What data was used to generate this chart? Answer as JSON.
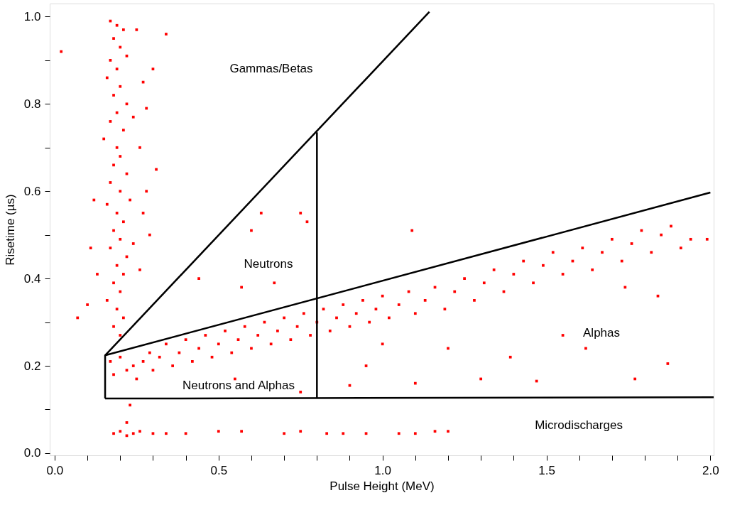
{
  "chart_data": {
    "type": "scatter",
    "xlabel": "Pulse Height (MeV)",
    "ylabel": "Risetime (µs)",
    "xlim": [
      -0.015,
      2.01
    ],
    "ylim": [
      -0.005,
      1.03
    ],
    "xticks": [
      {
        "value": 0,
        "label": "0.0"
      },
      {
        "value": 0.1,
        "label": null
      },
      {
        "value": 0.2,
        "label": null
      },
      {
        "value": 0.3,
        "label": null
      },
      {
        "value": 0.4,
        "label": null
      },
      {
        "value": 0.5,
        "label": "0.5"
      },
      {
        "value": 0.6,
        "label": null
      },
      {
        "value": 0.7,
        "label": null
      },
      {
        "value": 0.8,
        "label": null
      },
      {
        "value": 0.9,
        "label": null
      },
      {
        "value": 1.0,
        "label": "1.0"
      },
      {
        "value": 1.1,
        "label": null
      },
      {
        "value": 1.2,
        "label": null
      },
      {
        "value": 1.3,
        "label": null
      },
      {
        "value": 1.4,
        "label": null
      },
      {
        "value": 1.5,
        "label": "1.5"
      },
      {
        "value": 1.6,
        "label": null
      },
      {
        "value": 1.7,
        "label": null
      },
      {
        "value": 1.8,
        "label": null
      },
      {
        "value": 1.9,
        "label": null
      },
      {
        "value": 2.0,
        "label": "2.0"
      }
    ],
    "yticks": [
      {
        "value": 0,
        "label": "0.0"
      },
      {
        "value": 0.1,
        "label": null
      },
      {
        "value": 0.2,
        "label": "0.2"
      },
      {
        "value": 0.3,
        "label": null
      },
      {
        "value": 0.4,
        "label": "0.4"
      },
      {
        "value": 0.5,
        "label": null
      },
      {
        "value": 0.6,
        "label": "0.6"
      },
      {
        "value": 0.7,
        "label": null
      },
      {
        "value": 0.8,
        "label": "0.8"
      },
      {
        "value": 0.9,
        "label": null
      },
      {
        "value": 1.0,
        "label": "1.0"
      }
    ],
    "grid": false,
    "legend": false,
    "series": [
      {
        "marker": "square",
        "color": "#ff0000",
        "x": [
          0.17,
          0.19,
          0.21,
          0.18,
          0.2,
          0.22,
          0.17,
          0.19,
          0.25,
          0.27,
          0.16,
          0.2,
          0.18,
          0.22,
          0.19,
          0.17,
          0.21,
          0.24,
          0.15,
          0.19,
          0.2,
          0.18,
          0.22,
          0.17,
          0.2,
          0.23,
          0.16,
          0.19,
          0.21,
          0.18,
          0.2,
          0.17,
          0.22,
          0.19,
          0.21,
          0.18,
          0.2,
          0.16,
          0.19,
          0.21,
          0.18,
          0.2,
          0.26,
          0.28,
          0.29,
          0.12,
          0.11,
          0.13,
          0.1,
          0.26,
          0.3,
          0.31,
          0.27,
          0.24,
          0.28,
          0.17,
          0.18,
          0.2,
          0.22,
          0.24,
          0.25,
          0.27,
          0.29,
          0.3,
          0.32,
          0.34,
          0.36,
          0.38,
          0.4,
          0.42,
          0.44,
          0.46,
          0.48,
          0.5,
          0.52,
          0.54,
          0.56,
          0.58,
          0.6,
          0.62,
          0.64,
          0.66,
          0.68,
          0.7,
          0.72,
          0.74,
          0.76,
          0.78,
          0.8,
          0.82,
          0.84,
          0.86,
          0.88,
          0.9,
          0.92,
          0.94,
          0.96,
          0.98,
          1.0,
          1.02,
          1.05,
          1.08,
          1.1,
          1.13,
          1.16,
          1.19,
          1.22,
          1.25,
          1.28,
          1.31,
          1.34,
          1.37,
          1.4,
          1.43,
          1.46,
          1.49,
          1.52,
          1.55,
          1.58,
          1.61,
          1.64,
          1.67,
          1.7,
          1.73,
          1.76,
          1.79,
          1.82,
          1.85,
          1.88,
          1.91,
          1.94,
          0.9,
          1.1,
          1.3,
          1.47,
          1.77,
          1.2,
          1.0,
          1.62,
          1.87,
          1.39,
          0.95,
          0.55,
          0.75,
          1.55,
          1.84,
          1.74,
          0.02,
          0.07,
          0.34,
          0.63,
          0.75,
          0.77,
          1.09,
          0.44,
          0.57,
          0.6,
          1.99,
          0.67,
          0.18,
          0.2,
          0.22,
          0.24,
          0.26,
          0.3,
          0.34,
          0.4,
          0.5,
          0.57,
          0.7,
          0.75,
          0.83,
          0.88,
          0.95,
          1.05,
          1.1,
          1.16,
          1.2,
          0.22,
          0.23
        ],
        "values": [
          0.99,
          0.98,
          0.97,
          0.95,
          0.93,
          0.91,
          0.9,
          0.88,
          0.97,
          0.85,
          0.86,
          0.84,
          0.82,
          0.8,
          0.78,
          0.76,
          0.74,
          0.77,
          0.72,
          0.7,
          0.68,
          0.66,
          0.64,
          0.62,
          0.6,
          0.58,
          0.57,
          0.55,
          0.53,
          0.51,
          0.49,
          0.47,
          0.45,
          0.43,
          0.41,
          0.39,
          0.37,
          0.35,
          0.33,
          0.31,
          0.29,
          0.27,
          0.7,
          0.6,
          0.5,
          0.58,
          0.47,
          0.41,
          0.34,
          0.42,
          0.88,
          0.65,
          0.55,
          0.48,
          0.79,
          0.21,
          0.18,
          0.22,
          0.19,
          0.2,
          0.17,
          0.21,
          0.23,
          0.19,
          0.22,
          0.25,
          0.2,
          0.23,
          0.26,
          0.21,
          0.24,
          0.27,
          0.22,
          0.25,
          0.28,
          0.23,
          0.26,
          0.29,
          0.24,
          0.27,
          0.3,
          0.25,
          0.28,
          0.31,
          0.26,
          0.29,
          0.32,
          0.27,
          0.3,
          0.33,
          0.28,
          0.31,
          0.34,
          0.29,
          0.32,
          0.35,
          0.3,
          0.33,
          0.36,
          0.31,
          0.34,
          0.37,
          0.32,
          0.35,
          0.38,
          0.33,
          0.37,
          0.4,
          0.35,
          0.39,
          0.42,
          0.37,
          0.41,
          0.44,
          0.39,
          0.43,
          0.46,
          0.41,
          0.44,
          0.47,
          0.42,
          0.46,
          0.49,
          0.44,
          0.48,
          0.51,
          0.46,
          0.5,
          0.52,
          0.47,
          0.49,
          0.155,
          0.16,
          0.17,
          0.165,
          0.17,
          0.24,
          0.25,
          0.24,
          0.205,
          0.22,
          0.2,
          0.17,
          0.14,
          0.27,
          0.36,
          0.38,
          0.92,
          0.31,
          0.96,
          0.55,
          0.55,
          0.53,
          0.51,
          0.4,
          0.38,
          0.51,
          0.49,
          0.39,
          0.045,
          0.05,
          0.04,
          0.045,
          0.05,
          0.045,
          0.045,
          0.045,
          0.05,
          0.05,
          0.045,
          0.05,
          0.045,
          0.045,
          0.045,
          0.045,
          0.045,
          0.05,
          0.05,
          0.07,
          0.11
        ]
      },
      {
        "type": "line",
        "marker": "none",
        "line_style": "solid",
        "color": "#000000",
        "x": [
          0.154,
          0.154,
          2.0
        ],
        "values": [
          0.125,
          0.224,
          0.597
        ]
      },
      {
        "type": "line",
        "marker": "none",
        "line_style": "solid",
        "color": "#000000",
        "x": [
          0.154,
          2.01
        ],
        "values": [
          0.125,
          0.128
        ]
      },
      {
        "type": "line",
        "marker": "none",
        "line_style": "solid",
        "color": "#000000",
        "x": [
          0.154,
          1.143
        ],
        "values": [
          0.224,
          1.011
        ]
      },
      {
        "type": "line",
        "marker": "none",
        "line_style": "solid",
        "color": "#000000",
        "x": [
          0.8,
          0.8
        ],
        "values": [
          0.125,
          0.735
        ]
      }
    ],
    "annotations": [
      "Gammas/Betas",
      "Neutrons",
      "Alphas",
      "Neutrons and Alphas",
      "Microdischarges"
    ]
  }
}
